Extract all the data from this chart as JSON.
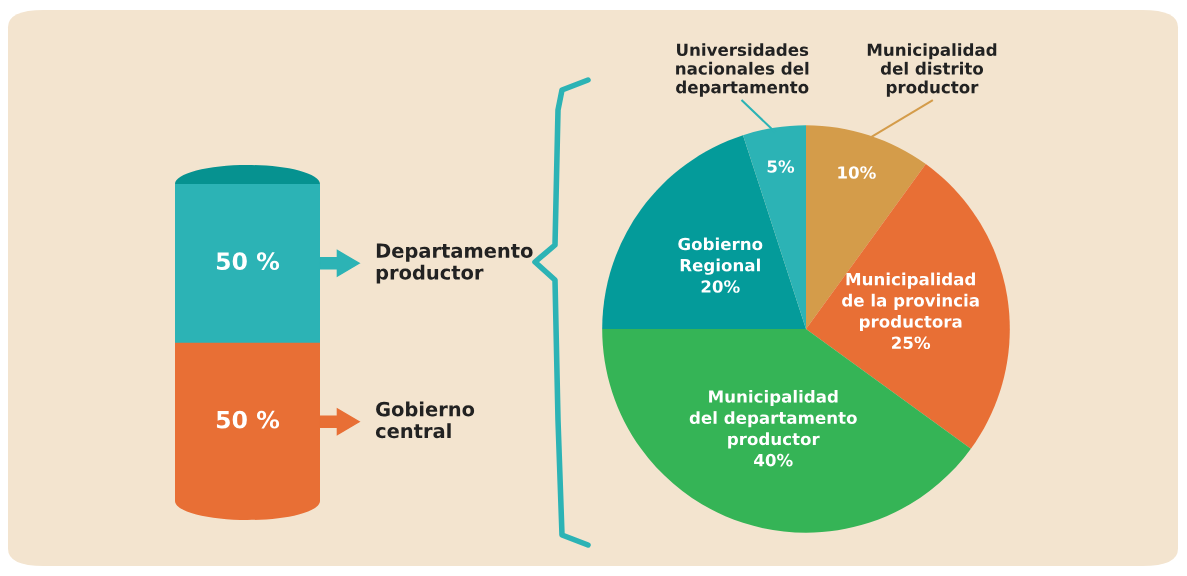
{
  "chart_data": [
    {
      "type": "bar",
      "stacked": true,
      "categories": [
        null
      ],
      "tick_labels": false,
      "legend": "right",
      "series": [
        {
          "name": "Gobierno\ncentral",
          "color": "#e86f35",
          "values": [
            50
          ],
          "value_labels": [
            "50 %"
          ]
        },
        {
          "name": "Departamento\nproductor",
          "color": "#2cb3b5",
          "values": [
            50
          ],
          "value_labels": [
            "50 %"
          ]
        }
      ]
    },
    {
      "type": "pie",
      "categories": [
        "Municipalidad\ndel distrito\nproductor",
        "Municipalidad\nde la provincia\nproductora",
        "Municipalidad\ndel departamento\nproductor",
        "Gobierno\nRegional",
        "Universidades\nnacionales del\ndepartamento"
      ],
      "values": [
        10,
        25,
        40,
        20,
        5
      ],
      "value_labels": [
        "10%",
        "25%",
        "40%",
        "20%",
        "5%"
      ],
      "colors": [
        "#d49c4a",
        "#e86f35",
        "#35b456",
        "#049b9a",
        "#2cb3b5"
      ]
    }
  ]
}
